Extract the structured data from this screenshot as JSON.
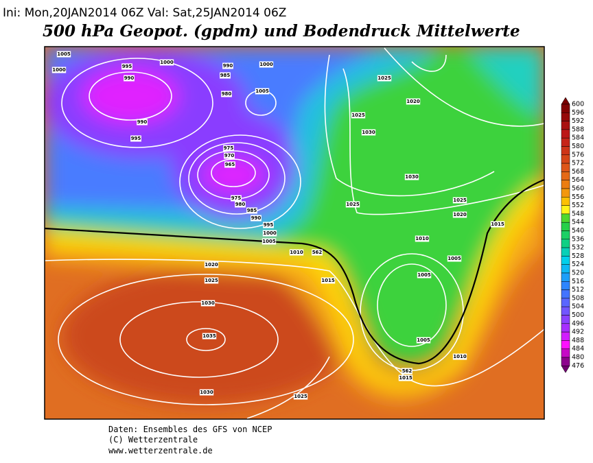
{
  "header": {
    "run": "Ini: Mon,20JAN2014 06Z Val: Sat,25JAN2014 06Z",
    "title": "500 hPa Geopot. (gpdm) und Bodendruck Mittelwerte"
  },
  "colorbar": {
    "labels": [
      600,
      596,
      592,
      588,
      584,
      580,
      576,
      572,
      568,
      564,
      560,
      556,
      552,
      548,
      544,
      540,
      536,
      532,
      528,
      524,
      520,
      516,
      512,
      508,
      504,
      500,
      496,
      492,
      488,
      484,
      480,
      476
    ]
  },
  "isobar_labels": [
    "1005",
    "1000",
    "995",
    "990",
    "1000",
    "990",
    "985",
    "980",
    "1000",
    "1005",
    "990",
    "995",
    "975",
    "970",
    "965",
    "975",
    "980",
    "985",
    "990",
    "995",
    "1000",
    "1005",
    "1010",
    "562",
    "1020",
    "1025",
    "1030",
    "1035",
    "1030",
    "1025",
    "1015",
    "1025",
    "1020",
    "1025",
    "1030",
    "1030",
    "1025",
    "1025",
    "1020",
    "1015",
    "1010",
    "1005",
    "1005",
    "1005",
    "1010",
    "562",
    "1015"
  ],
  "footer": {
    "line1": "Daten: Ensembles des GFS von NCEP",
    "line2": "(C) Wetterzentrale",
    "line3": "www.wetterzentrale.de"
  }
}
